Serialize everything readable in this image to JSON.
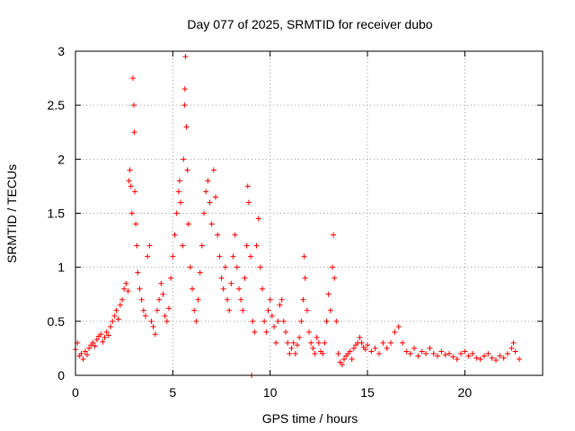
{
  "chart_data": {
    "type": "scatter",
    "title": "Day 077 of 2025, SRMTID for receiver dubo",
    "xlabel": "GPS time / hours",
    "ylabel": "SRMTID / TECUs",
    "xlim": [
      0,
      24
    ],
    "ylim": [
      0,
      3
    ],
    "xticks": [
      0,
      5,
      10,
      15,
      20
    ],
    "xtick_labels": [
      "0",
      "5",
      "10",
      "15",
      "20"
    ],
    "yticks": [
      0,
      0.5,
      1,
      1.5,
      2,
      2.5,
      3
    ],
    "ytick_labels": [
      "0",
      "0.5",
      "1",
      "1.5",
      "2",
      "2.5",
      "3"
    ],
    "grid": true,
    "marker": "+",
    "color": "#ff0000",
    "series": [
      {
        "name": "SRMTID",
        "points": [
          [
            0.0,
            0.24
          ],
          [
            0.1,
            0.3
          ],
          [
            0.2,
            0.18
          ],
          [
            0.3,
            0.2
          ],
          [
            0.4,
            0.15
          ],
          [
            0.5,
            0.22
          ],
          [
            0.6,
            0.19
          ],
          [
            0.7,
            0.25
          ],
          [
            0.8,
            0.28
          ],
          [
            0.9,
            0.3
          ],
          [
            1.0,
            0.27
          ],
          [
            1.1,
            0.33
          ],
          [
            1.2,
            0.36
          ],
          [
            1.3,
            0.38
          ],
          [
            1.4,
            0.31
          ],
          [
            1.5,
            0.35
          ],
          [
            1.6,
            0.4
          ],
          [
            1.7,
            0.37
          ],
          [
            1.8,
            0.45
          ],
          [
            1.9,
            0.5
          ],
          [
            2.0,
            0.55
          ],
          [
            2.1,
            0.6
          ],
          [
            2.2,
            0.52
          ],
          [
            2.3,
            0.65
          ],
          [
            2.4,
            0.7
          ],
          [
            2.5,
            0.8
          ],
          [
            2.6,
            0.85
          ],
          [
            2.7,
            0.78
          ],
          [
            2.75,
            1.8
          ],
          [
            2.8,
            1.9
          ],
          [
            2.85,
            1.75
          ],
          [
            2.9,
            1.5
          ],
          [
            2.95,
            2.75
          ],
          [
            3.0,
            2.5
          ],
          [
            3.02,
            2.25
          ],
          [
            3.05,
            1.7
          ],
          [
            3.1,
            1.4
          ],
          [
            3.15,
            1.2
          ],
          [
            3.2,
            0.95
          ],
          [
            3.3,
            0.8
          ],
          [
            3.4,
            0.7
          ],
          [
            3.5,
            0.6
          ],
          [
            3.6,
            0.55
          ],
          [
            3.7,
            1.1
          ],
          [
            3.8,
            1.2
          ],
          [
            3.9,
            0.5
          ],
          [
            4.0,
            0.45
          ],
          [
            4.1,
            0.38
          ],
          [
            4.2,
            0.6
          ],
          [
            4.3,
            0.7
          ],
          [
            4.4,
            0.85
          ],
          [
            4.5,
            0.75
          ],
          [
            4.6,
            0.55
          ],
          [
            4.7,
            0.5
          ],
          [
            4.8,
            0.62
          ],
          [
            4.9,
            0.9
          ],
          [
            5.0,
            1.1
          ],
          [
            5.1,
            1.3
          ],
          [
            5.2,
            1.5
          ],
          [
            5.3,
            1.7
          ],
          [
            5.35,
            1.8
          ],
          [
            5.4,
            1.6
          ],
          [
            5.5,
            1.2
          ],
          [
            5.55,
            2.0
          ],
          [
            5.6,
            2.5
          ],
          [
            5.62,
            2.65
          ],
          [
            5.65,
            2.95
          ],
          [
            5.7,
            2.3
          ],
          [
            5.75,
            1.9
          ],
          [
            5.8,
            1.4
          ],
          [
            5.9,
            1.0
          ],
          [
            6.0,
            0.8
          ],
          [
            6.1,
            0.6
          ],
          [
            6.2,
            0.5
          ],
          [
            6.3,
            0.7
          ],
          [
            6.4,
            0.95
          ],
          [
            6.5,
            1.2
          ],
          [
            6.6,
            1.5
          ],
          [
            6.7,
            1.7
          ],
          [
            6.8,
            1.8
          ],
          [
            6.9,
            1.6
          ],
          [
            7.0,
            1.4
          ],
          [
            7.1,
            1.9
          ],
          [
            7.2,
            1.65
          ],
          [
            7.3,
            1.3
          ],
          [
            7.4,
            1.1
          ],
          [
            7.5,
            0.9
          ],
          [
            7.6,
            0.8
          ],
          [
            7.7,
            1.0
          ],
          [
            7.8,
            0.7
          ],
          [
            7.9,
            0.6
          ],
          [
            8.0,
            0.85
          ],
          [
            8.1,
            1.1
          ],
          [
            8.2,
            1.3
          ],
          [
            8.3,
            1.0
          ],
          [
            8.4,
            0.8
          ],
          [
            8.5,
            0.7
          ],
          [
            8.6,
            0.6
          ],
          [
            8.7,
            0.9
          ],
          [
            8.8,
            1.2
          ],
          [
            8.85,
            1.75
          ],
          [
            8.9,
            1.6
          ],
          [
            9.0,
            1.1
          ],
          [
            9.05,
            0.0
          ],
          [
            9.1,
            0.5
          ],
          [
            9.2,
            0.4
          ],
          [
            9.3,
            1.2
          ],
          [
            9.4,
            1.45
          ],
          [
            9.5,
            1.0
          ],
          [
            9.6,
            0.8
          ],
          [
            9.7,
            0.5
          ],
          [
            9.8,
            0.4
          ],
          [
            9.9,
            0.6
          ],
          [
            10.0,
            0.7
          ],
          [
            10.1,
            0.55
          ],
          [
            10.2,
            0.45
          ],
          [
            10.3,
            0.3
          ],
          [
            10.4,
            0.5
          ],
          [
            10.5,
            0.65
          ],
          [
            10.6,
            0.7
          ],
          [
            10.7,
            0.5
          ],
          [
            10.8,
            0.4
          ],
          [
            10.9,
            0.3
          ],
          [
            11.0,
            0.2
          ],
          [
            11.1,
            0.25
          ],
          [
            11.2,
            0.3
          ],
          [
            11.3,
            0.2
          ],
          [
            11.4,
            0.28
          ],
          [
            11.5,
            0.35
          ],
          [
            11.6,
            0.5
          ],
          [
            11.7,
            0.7
          ],
          [
            11.75,
            1.1
          ],
          [
            11.8,
            0.9
          ],
          [
            11.9,
            0.6
          ],
          [
            12.0,
            0.4
          ],
          [
            12.1,
            0.3
          ],
          [
            12.2,
            0.25
          ],
          [
            12.3,
            0.2
          ],
          [
            12.4,
            0.35
          ],
          [
            12.5,
            0.3
          ],
          [
            12.6,
            0.22
          ],
          [
            12.7,
            0.2
          ],
          [
            12.8,
            0.3
          ],
          [
            12.9,
            0.5
          ],
          [
            13.0,
            0.75
          ],
          [
            13.1,
            0.6
          ],
          [
            13.2,
            1.0
          ],
          [
            13.25,
            1.3
          ],
          [
            13.3,
            0.9
          ],
          [
            13.4,
            0.5
          ],
          [
            13.5,
            0.2
          ],
          [
            13.6,
            0.12
          ],
          [
            13.7,
            0.1
          ],
          [
            13.8,
            0.15
          ],
          [
            13.9,
            0.18
          ],
          [
            14.0,
            0.2
          ],
          [
            14.1,
            0.22
          ],
          [
            14.2,
            0.15
          ],
          [
            14.3,
            0.25
          ],
          [
            14.4,
            0.28
          ],
          [
            14.5,
            0.3
          ],
          [
            14.6,
            0.35
          ],
          [
            14.7,
            0.3
          ],
          [
            14.8,
            0.26
          ],
          [
            14.9,
            0.24
          ],
          [
            15.0,
            0.28
          ],
          [
            15.2,
            0.22
          ],
          [
            15.4,
            0.25
          ],
          [
            15.6,
            0.2
          ],
          [
            15.8,
            0.3
          ],
          [
            16.0,
            0.25
          ],
          [
            16.2,
            0.3
          ],
          [
            16.4,
            0.4
          ],
          [
            16.6,
            0.45
          ],
          [
            16.8,
            0.3
          ],
          [
            17.0,
            0.22
          ],
          [
            17.2,
            0.2
          ],
          [
            17.4,
            0.25
          ],
          [
            17.6,
            0.18
          ],
          [
            17.8,
            0.22
          ],
          [
            18.0,
            0.2
          ],
          [
            18.2,
            0.25
          ],
          [
            18.4,
            0.2
          ],
          [
            18.6,
            0.18
          ],
          [
            18.8,
            0.22
          ],
          [
            19.0,
            0.19
          ],
          [
            19.2,
            0.2
          ],
          [
            19.4,
            0.17
          ],
          [
            19.6,
            0.15
          ],
          [
            19.8,
            0.2
          ],
          [
            20.0,
            0.22
          ],
          [
            20.2,
            0.18
          ],
          [
            20.4,
            0.2
          ],
          [
            20.6,
            0.16
          ],
          [
            20.8,
            0.15
          ],
          [
            21.0,
            0.18
          ],
          [
            21.2,
            0.2
          ],
          [
            21.4,
            0.16
          ],
          [
            21.6,
            0.14
          ],
          [
            21.8,
            0.18
          ],
          [
            22.0,
            0.16
          ],
          [
            22.2,
            0.2
          ],
          [
            22.4,
            0.25
          ],
          [
            22.5,
            0.3
          ],
          [
            22.6,
            0.22
          ],
          [
            22.8,
            0.15
          ]
        ]
      }
    ]
  }
}
